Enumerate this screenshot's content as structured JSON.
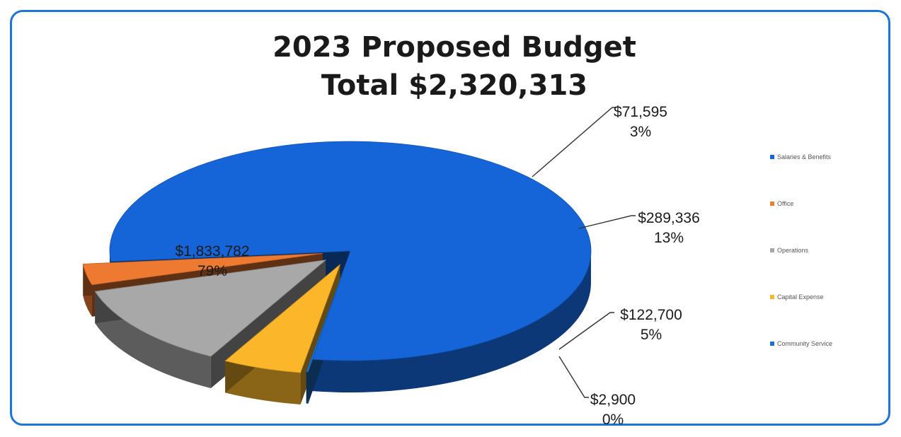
{
  "chart_data": {
    "type": "pie",
    "title": "2023 Proposed Budget",
    "subtitle": "Total $2,320,313",
    "slices": [
      {
        "name": "Salaries & Benefits",
        "value": 1833782,
        "value_label": "$1,833,782",
        "pct_label": "79%",
        "color": "#1565d8"
      },
      {
        "name": "Office",
        "value": 71595,
        "value_label": "$71,595",
        "pct_label": "3%",
        "color": "#ee7a32"
      },
      {
        "name": "Operations",
        "value": 289336,
        "value_label": "$289,336",
        "pct_label": "13%",
        "color": "#a8a8a8"
      },
      {
        "name": "Capital Expense",
        "value": 122700,
        "value_label": "$122,700",
        "pct_label": "5%",
        "color": "#fbb62a"
      },
      {
        "name": "Community Service",
        "value": 2900,
        "value_label": "$2,900",
        "pct_label": "0%",
        "color": "#1f6fc9"
      }
    ],
    "legend": {
      "position": "right"
    }
  }
}
